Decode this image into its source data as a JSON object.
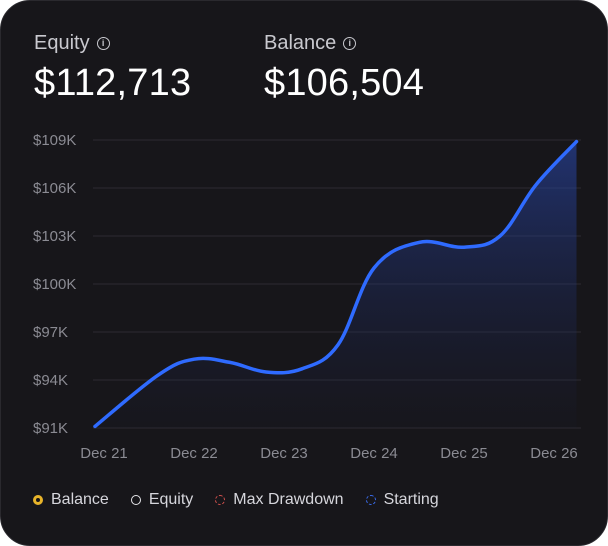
{
  "stats": {
    "equity": {
      "label": "Equity",
      "value": "$112,713"
    },
    "balance": {
      "label": "Balance",
      "value": "$106,504"
    }
  },
  "icons": {
    "info": "info-icon"
  },
  "legend": [
    {
      "label": "Balance",
      "color": "#e8b42a",
      "style": "solid-thick"
    },
    {
      "label": "Equity",
      "color": "#e6e6ea",
      "style": "solid"
    },
    {
      "label": "Max Drawdown",
      "color": "#d9534f",
      "style": "dashed"
    },
    {
      "label": "Starting",
      "color": "#3b6ff5",
      "style": "dashed"
    }
  ],
  "chart_data": {
    "type": "area",
    "x": [
      "Dec 21",
      "Dec 22",
      "Dec 23",
      "Dec 24",
      "Dec 25",
      "Dec 26"
    ],
    "y_ticks": [
      "$109K",
      "$106K",
      "$103K",
      "$100K",
      "$97K",
      "$94K",
      "$91K"
    ],
    "ylim": [
      91000,
      109000
    ],
    "grid": true,
    "line_color": "#2f6bff",
    "series": [
      {
        "points": [
          {
            "x": 0.0,
            "y": 91100
          },
          {
            "x": 0.6,
            "y": 94300
          },
          {
            "x": 1.0,
            "y": 95300
          },
          {
            "x": 1.4,
            "y": 95100
          },
          {
            "x": 1.8,
            "y": 94500
          },
          {
            "x": 2.2,
            "y": 94700
          },
          {
            "x": 2.6,
            "y": 96200
          },
          {
            "x": 3.0,
            "y": 101000
          },
          {
            "x": 3.5,
            "y": 102600
          },
          {
            "x": 4.0,
            "y": 102300
          },
          {
            "x": 4.4,
            "y": 103000
          },
          {
            "x": 4.8,
            "y": 106200
          },
          {
            "x": 5.25,
            "y": 108900
          }
        ]
      }
    ]
  }
}
